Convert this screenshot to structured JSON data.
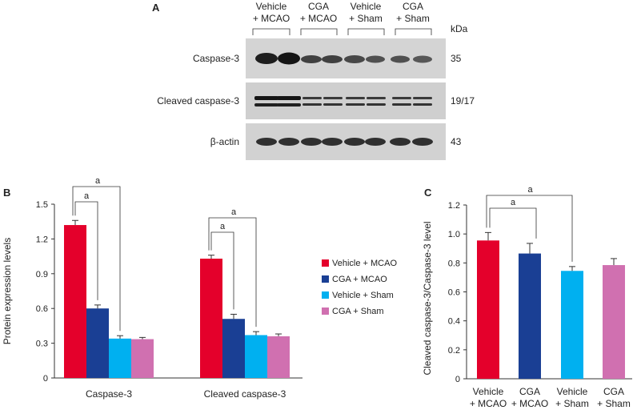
{
  "panels": {
    "a": "A",
    "b": "B",
    "c": "C"
  },
  "colors": {
    "vehicle_mcao": "#e4002b",
    "cga_mcao": "#1a3f94",
    "vehicle_sham": "#00b0f0",
    "cga_sham": "#d070b0"
  },
  "blot": {
    "groups": [
      {
        "line1": "Vehicle",
        "line2": "+ MCAO"
      },
      {
        "line1": "CGA",
        "line2": "+ MCAO"
      },
      {
        "line1": "Vehicle",
        "line2": "+ Sham"
      },
      {
        "line1": "CGA",
        "line2": "+ Sham"
      }
    ],
    "unit": "kDa",
    "rows": [
      {
        "label": "Caspase-3",
        "kda": "35"
      },
      {
        "label": "Cleaved caspase-3",
        "kda": "19/17"
      },
      {
        "label": "β-actin",
        "kda": "43"
      }
    ]
  },
  "legend": [
    "Vehicle + MCAO",
    "CGA + MCAO",
    "Vehicle + Sham",
    "CGA + Sham"
  ],
  "chart_data": [
    {
      "type": "bar",
      "ylabel": "Protein expression levels",
      "ylim": [
        0,
        1.5
      ],
      "yticks": [
        "0",
        "0.3",
        "0.6",
        "0.9",
        "1.2",
        "1.5"
      ],
      "categories": [
        "Caspase-3",
        "Cleaved caspase-3"
      ],
      "series": [
        {
          "name": "Vehicle + MCAO",
          "values": [
            1.32,
            1.03
          ],
          "errors": [
            0.04,
            0.03
          ]
        },
        {
          "name": "CGA + MCAO",
          "values": [
            0.6,
            0.51
          ],
          "errors": [
            0.03,
            0.04
          ]
        },
        {
          "name": "Vehicle + Sham",
          "values": [
            0.34,
            0.37
          ],
          "errors": [
            0.025,
            0.03
          ]
        },
        {
          "name": "CGA + Sham",
          "values": [
            0.335,
            0.36
          ],
          "errors": [
            0.015,
            0.02
          ]
        }
      ],
      "annotations": [
        "a",
        "a",
        "a",
        "a"
      ],
      "legend_position": "right"
    },
    {
      "type": "bar",
      "ylabel": "Cleaved caspase-3/Caspase-3 level",
      "ylim": [
        0,
        1.2
      ],
      "yticks": [
        "0",
        "0.2",
        "0.4",
        "0.6",
        "0.8",
        "1.0",
        "1.2"
      ],
      "categories": [
        {
          "line1": "Vehicle",
          "line2": "+ MCAO"
        },
        {
          "line1": "CGA",
          "line2": "+ MCAO"
        },
        {
          "line1": "Vehicle",
          "line2": "+ Sham"
        },
        {
          "line1": "CGA",
          "line2": "+ Sham"
        }
      ],
      "values": [
        0.955,
        0.865,
        0.745,
        0.785
      ],
      "errors": [
        0.055,
        0.07,
        0.03,
        0.045
      ],
      "annotations": [
        "a",
        "a"
      ]
    }
  ]
}
